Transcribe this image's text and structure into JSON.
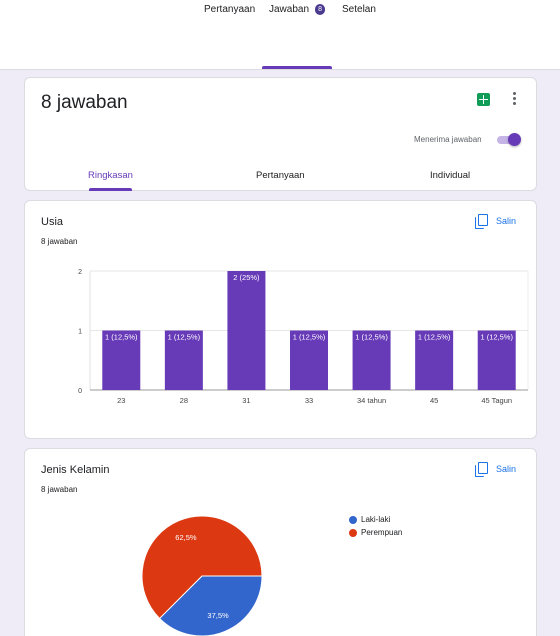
{
  "tabs": [
    {
      "label": "Pertanyaan"
    },
    {
      "label": "Jawaban",
      "badge": "8"
    },
    {
      "label": "Setelan"
    }
  ],
  "summary": {
    "title": "8 jawaban",
    "accepting_label": "Menerima jawaban",
    "accepting": true,
    "sheets_icon": "google-sheets-icon",
    "more_icon": "more-vert-icon",
    "subtabs": [
      "Ringkasan",
      "Pertanyaan",
      "Individual"
    ],
    "active_subtab": "Ringkasan"
  },
  "questions": [
    {
      "title": "Usia",
      "subtitle": "8 jawaban",
      "copy_label": "Salin"
    },
    {
      "title": "Jenis Kelamin",
      "subtitle": "8 jawaban",
      "copy_label": "Salin"
    }
  ],
  "colors": {
    "accent": "#673ab7",
    "bar": "#673ab7",
    "link": "#1a73e8",
    "pie_blue": "#3366cc",
    "pie_red": "#dc3912"
  },
  "chart_data": [
    {
      "type": "bar",
      "categories": [
        "23",
        "28",
        "31",
        "33",
        "34 tahun",
        "45",
        "45 Tagun"
      ],
      "values": [
        1,
        1,
        2,
        1,
        1,
        1,
        1
      ],
      "data_labels": [
        "1 (12,5%)",
        "1 (12,5%)",
        "2 (25%)",
        "1 (12,5%)",
        "1 (12,5%)",
        "1 (12,5%)",
        "1 (12,5%)"
      ],
      "yticks": [
        "0",
        "1",
        "2"
      ],
      "ylim": [
        0,
        2
      ],
      "grid": true
    },
    {
      "type": "pie",
      "labels": [
        "Laki-laki",
        "Perempuan"
      ],
      "values": [
        37.5,
        62.5
      ],
      "data_labels": [
        "37,5%",
        "62,5%"
      ],
      "colors": [
        "#3366cc",
        "#dc3912"
      ],
      "legend": "right"
    }
  ]
}
